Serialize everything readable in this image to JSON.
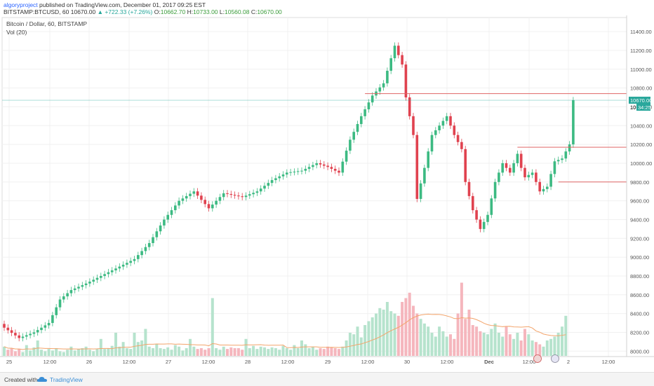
{
  "header": {
    "author": "algoryproject",
    "published": "published on TradingView.com, December 01, 2017 09:25 EST",
    "symbol": "BITSTAMP:BTCUSD, 60",
    "last": "10670.00",
    "change": "▲ +722.33 (+7.26%)",
    "o_label": "O:",
    "o_val": "10662.70",
    "h_label": "H:",
    "h_val": "10733.00",
    "l_label": "L:",
    "l_val": "10560.08",
    "c_label": "C:",
    "c_val": "10670.00"
  },
  "legend": {
    "title": "Bitcoin / Dollar, 60, BITSTAMP",
    "volume": "Vol (20)"
  },
  "price_tags": {
    "last": "10670.00",
    "label": "10",
    "countdown": "34:25"
  },
  "footer": {
    "created_with": "Created with",
    "brand": "TradingView"
  },
  "colors": {
    "up": "#3cba82",
    "down": "#e0424f",
    "vol_up": "#b6e3cd",
    "vol_down": "#f5b6bd",
    "ma": "#f3a46b",
    "level": "#e06666",
    "last_price": "#26a69a",
    "grid": "#f0f0f0"
  },
  "chart_data": {
    "type": "candlestick",
    "title": "Bitcoin / Dollar, 60, BITSTAMP",
    "y_range": [
      7950,
      11550
    ],
    "y_ticks": [
      8000,
      8200,
      8400,
      8600,
      8800,
      9000,
      9200,
      9400,
      9600,
      9800,
      10000,
      10200,
      10400,
      10600,
      10800,
      11000,
      11200,
      11400
    ],
    "x_ticks": [
      "25",
      "12:00",
      "26",
      "12:00",
      "27",
      "12:00",
      "28",
      "12:00",
      "29",
      "12:00",
      "30",
      "12:00",
      "Dec",
      "12:00",
      "2",
      "12:00"
    ],
    "bold_ticks": [
      "Dec"
    ],
    "close_path": [
      [
        0,
        8250
      ],
      [
        4,
        8140
      ],
      [
        8,
        8200
      ],
      [
        12,
        8300
      ],
      [
        15,
        8550
      ],
      [
        18,
        8650
      ],
      [
        22,
        8720
      ],
      [
        27,
        8820
      ],
      [
        31,
        8900
      ],
      [
        35,
        8980
      ],
      [
        39,
        9150
      ],
      [
        43,
        9400
      ],
      [
        47,
        9600
      ],
      [
        51,
        9700
      ],
      [
        55,
        9520
      ],
      [
        59,
        9680
      ],
      [
        64,
        9640
      ],
      [
        68,
        9700
      ],
      [
        72,
        9820
      ],
      [
        76,
        9900
      ],
      [
        80,
        9920
      ],
      [
        84,
        10000
      ],
      [
        87,
        9960
      ],
      [
        90,
        9900
      ],
      [
        93,
        10250
      ],
      [
        96,
        10500
      ],
      [
        99,
        10720
      ],
      [
        102,
        10850
      ],
      [
        105,
        11250
      ],
      [
        107,
        11050
      ],
      [
        108,
        10700
      ],
      [
        110,
        10300
      ],
      [
        111,
        9620
      ],
      [
        113,
        9950
      ],
      [
        115,
        10300
      ],
      [
        117,
        10400
      ],
      [
        119,
        10500
      ],
      [
        121,
        10300
      ],
      [
        123,
        10150
      ],
      [
        124,
        9800
      ],
      [
        125,
        9650
      ],
      [
        126,
        9500
      ],
      [
        128,
        9300
      ],
      [
        130,
        9450
      ],
      [
        132,
        9800
      ],
      [
        134,
        10000
      ],
      [
        136,
        9900
      ],
      [
        138,
        10100
      ],
      [
        139,
        9950
      ],
      [
        140,
        9850
      ],
      [
        142,
        9900
      ],
      [
        144,
        9700
      ],
      [
        146,
        9750
      ],
      [
        148,
        10020
      ],
      [
        150,
        10050
      ],
      [
        152,
        10200
      ],
      [
        153,
        10670
      ]
    ],
    "volume_heights": [
      0.12,
      0.08,
      0.1,
      0.06,
      0.09,
      0.05,
      0.14,
      0.07,
      0.11,
      0.2,
      0.08,
      0.06,
      0.09,
      0.07,
      0.1,
      0.06,
      0.05,
      0.08,
      0.12,
      0.07,
      0.09,
      0.1,
      0.12,
      0.08,
      0.06,
      0.09,
      0.22,
      0.09,
      0.1,
      0.13,
      0.3,
      0.12,
      0.18,
      0.1,
      0.09,
      0.3,
      0.18,
      0.2,
      0.35,
      0.12,
      0.1,
      0.15,
      0.1,
      0.09,
      0.11,
      0.08,
      0.14,
      0.12,
      0.07,
      0.1,
      0.22,
      0.12,
      0.09,
      0.1,
      0.08,
      0.1,
      0.75,
      0.1,
      0.08,
      0.12,
      0.09,
      0.11,
      0.1,
      0.1,
      0.08,
      0.22,
      0.1,
      0.13,
      0.09,
      0.12,
      0.11,
      0.09,
      0.11,
      0.1,
      0.08,
      0.13,
      0.1,
      0.08,
      0.14,
      0.1,
      0.2,
      0.15,
      0.1,
      0.12,
      0.08,
      0.1,
      0.09,
      0.12,
      0.11,
      0.1,
      0.09,
      0.12,
      0.2,
      0.3,
      0.28,
      0.38,
      0.24,
      0.4,
      0.45,
      0.5,
      0.55,
      0.62,
      0.6,
      0.7,
      0.58,
      0.55,
      0.52,
      0.7,
      0.75,
      0.82,
      0.65,
      0.55,
      0.48,
      0.42,
      0.38,
      0.3,
      0.25,
      0.38,
      0.32,
      0.25,
      0.28,
      0.22,
      0.55,
      0.95,
      0.48,
      0.6,
      0.4,
      0.38,
      0.32,
      0.3,
      0.28,
      0.35,
      0.42,
      0.3,
      0.25,
      0.38,
      0.28,
      0.22,
      0.3,
      0.2,
      0.35,
      0.28,
      0.2,
      0.18,
      0.15,
      0.12,
      0.2,
      0.22,
      0.25,
      0.3,
      0.38,
      0.52
    ],
    "levels": [
      {
        "price": 10740,
        "from_bar": 97,
        "to_bar": 178
      },
      {
        "price": 10170,
        "from_bar": 138,
        "to_bar": 178
      },
      {
        "price": 9800,
        "from_bar": 149,
        "to_bar": 178
      }
    ],
    "last_price": 10670
  }
}
